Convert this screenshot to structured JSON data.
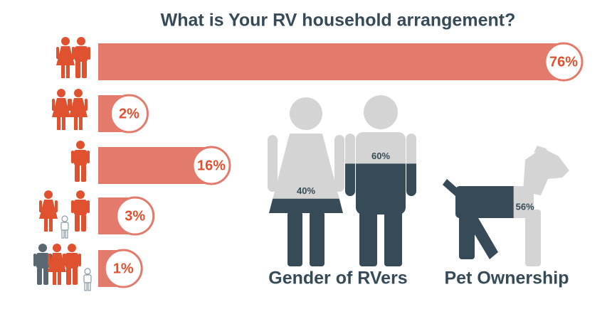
{
  "chart_data": [
    {
      "type": "bar",
      "title": "What is Your RV household arrangement?",
      "categories": [
        null,
        null,
        null,
        null,
        null
      ],
      "values": [
        76,
        2,
        16,
        3,
        1
      ],
      "value_labels": [
        "76%",
        "2%",
        "16%",
        "3%",
        "1%"
      ],
      "color": "#e27b6c",
      "xlim": [
        0,
        100
      ]
    },
    {
      "type": "pictogram",
      "title": "Gender of RVers",
      "values": [
        40,
        60
      ],
      "value_labels": [
        "40%",
        "60%"
      ],
      "color": "#364a57",
      "background_color": "#d4d4d4",
      "ylim": [
        0,
        100
      ]
    },
    {
      "type": "pictogram",
      "title": "Pet Ownership",
      "values": [
        56
      ],
      "value_labels": [
        "56%"
      ],
      "color": "#364a57",
      "background_color": "#d4d4d4",
      "xlim": [
        0,
        100
      ]
    }
  ]
}
